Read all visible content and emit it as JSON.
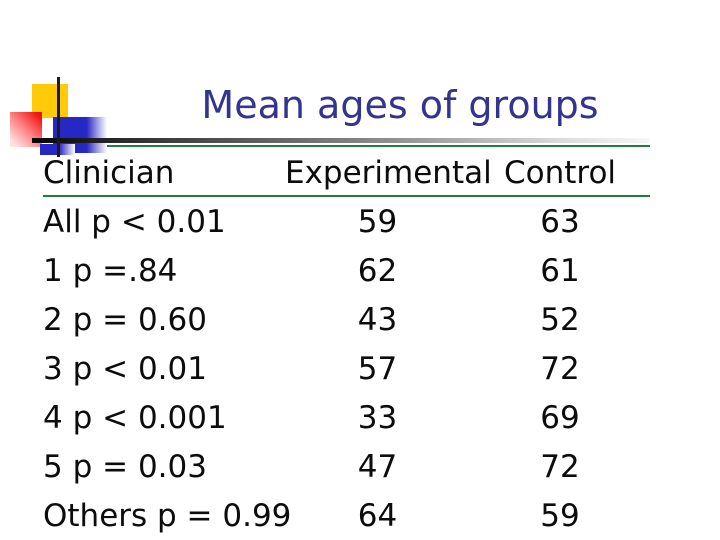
{
  "slide": {
    "title": "Mean ages of groups",
    "colors": {
      "title_navy": "#333390",
      "rule_green": "#1e7e3e",
      "accent_yellow": "#ffca08",
      "accent_red": "#ef0f0f",
      "accent_blue": "#2727c3",
      "text_black": "#0c0c0c"
    }
  },
  "chart_data": {
    "type": "table",
    "title": "Mean ages of groups",
    "columns": [
      "Clinician",
      "Experimental",
      "Control"
    ],
    "rows": [
      [
        "All p < 0.01",
        59,
        63
      ],
      [
        "1 p =.84",
        62,
        61
      ],
      [
        "2 p = 0.60",
        43,
        52
      ],
      [
        "3 p < 0.01",
        57,
        72
      ],
      [
        "4 p < 0.001",
        33,
        69
      ],
      [
        "5 p = 0.03",
        47,
        72
      ],
      [
        "Others p = 0.99",
        64,
        59
      ]
    ]
  }
}
